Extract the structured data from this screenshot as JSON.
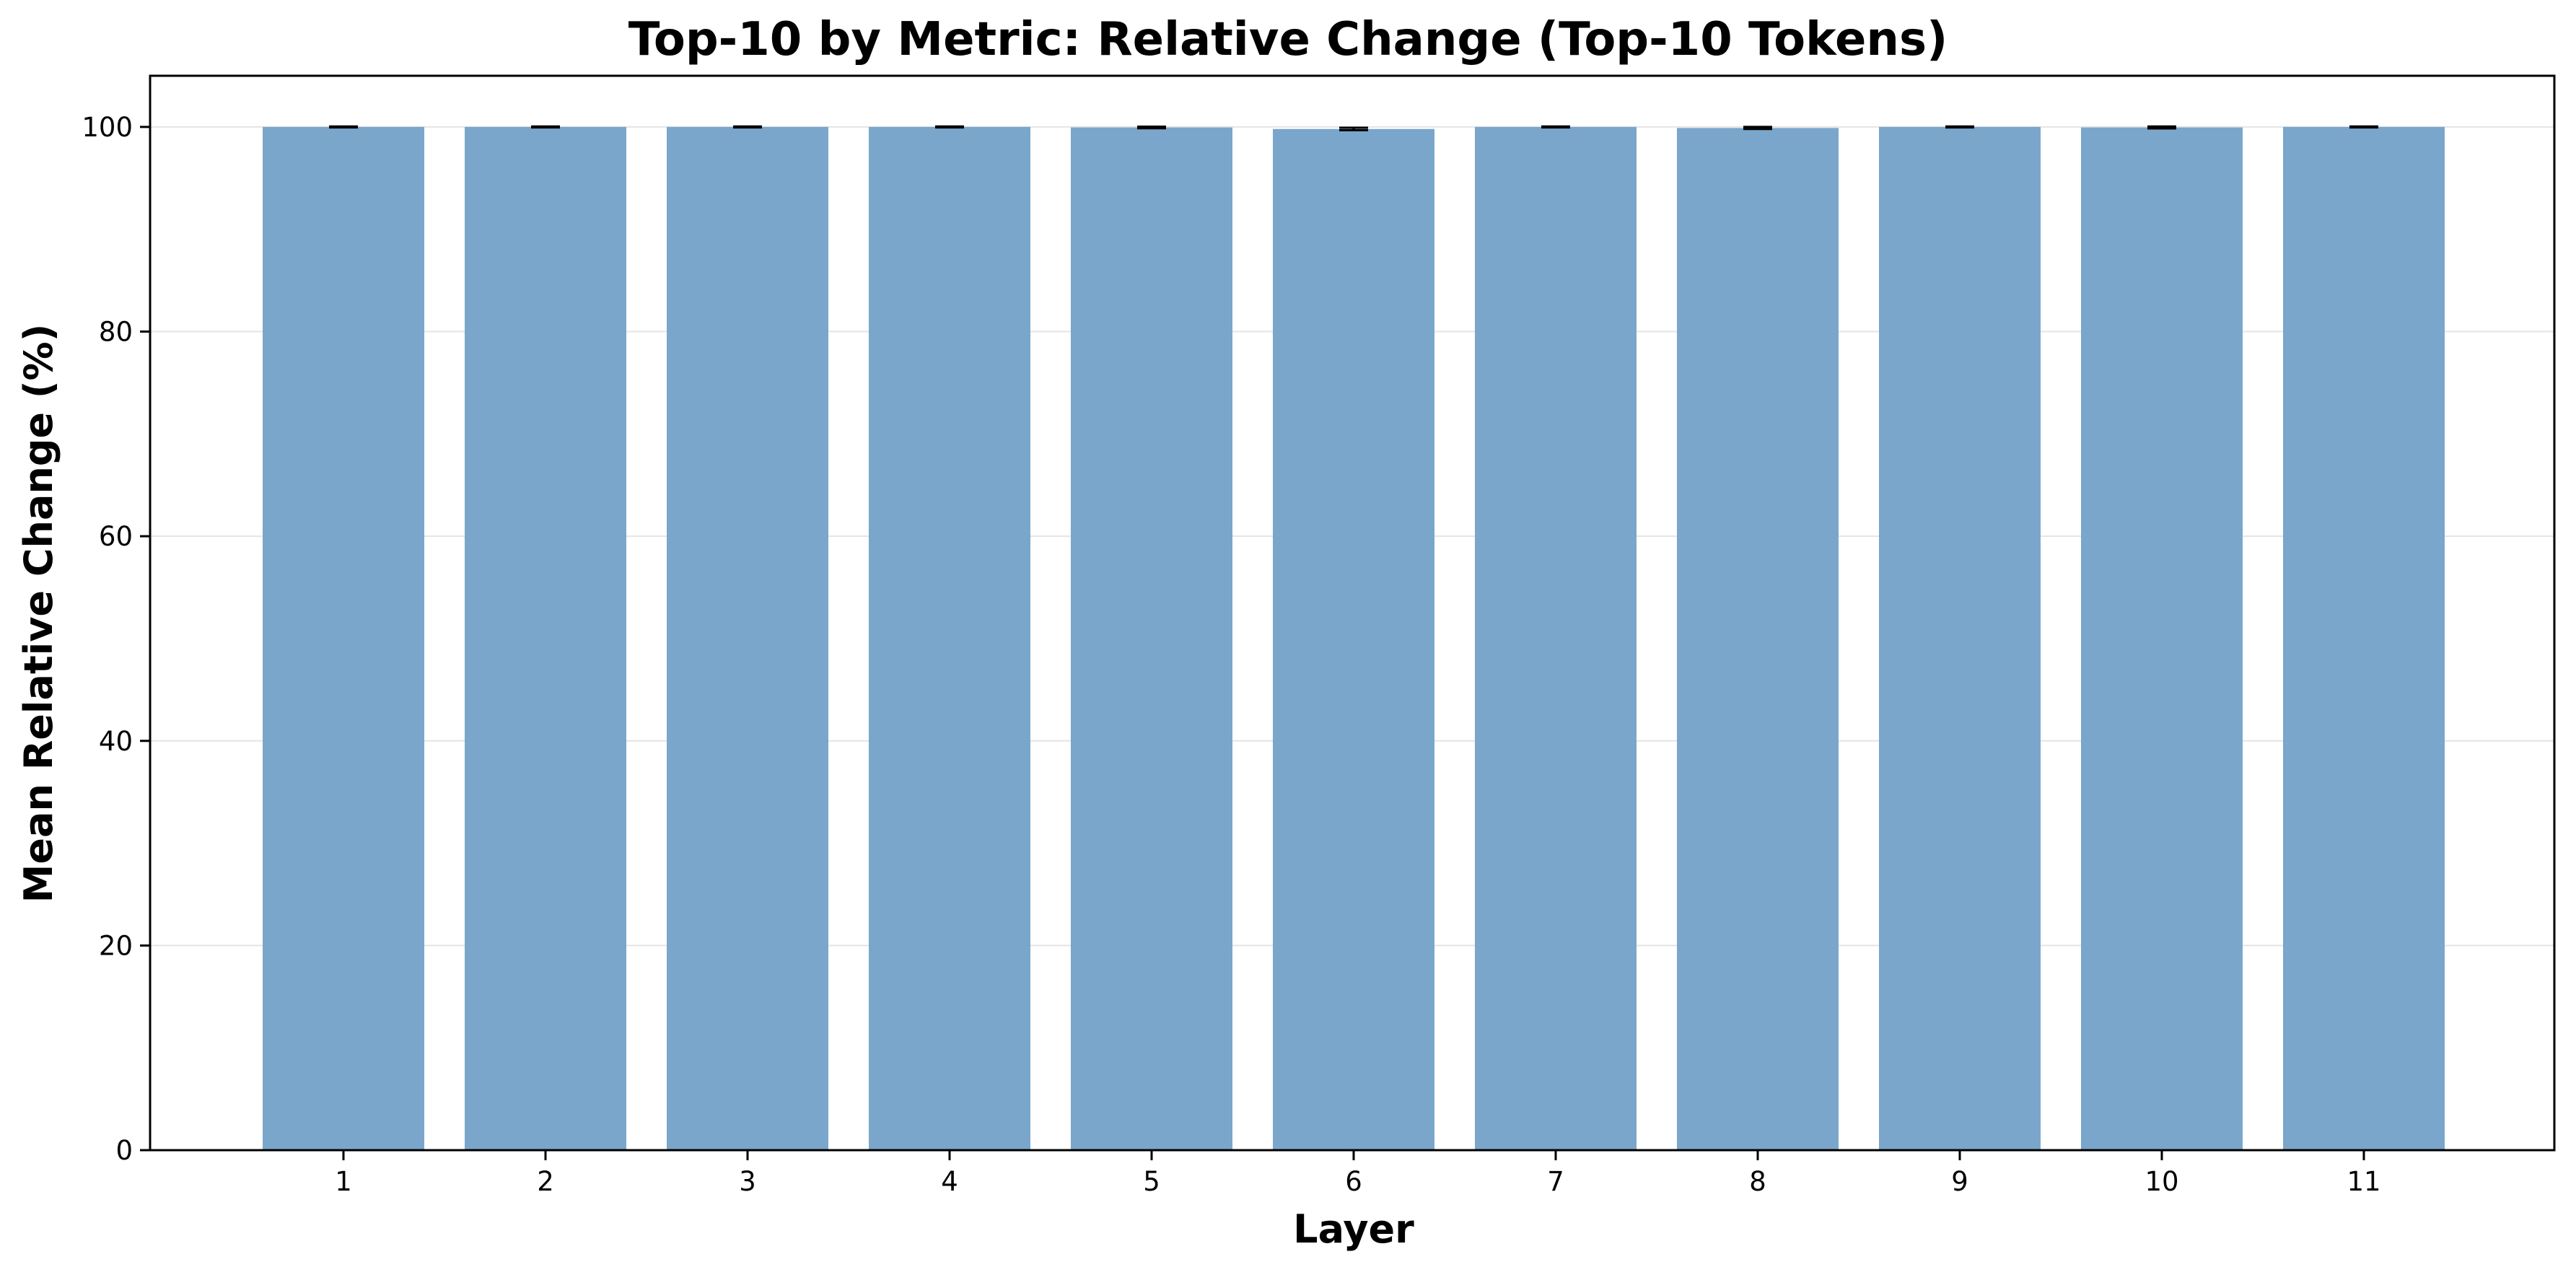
{
  "chart_data": {
    "type": "bar",
    "title": "Top-10 by Metric: Relative Change (Top-10 Tokens)",
    "xlabel": "Layer",
    "ylabel": "Mean Relative Change (%)",
    "categories": [
      "1",
      "2",
      "3",
      "4",
      "5",
      "6",
      "7",
      "8",
      "9",
      "10",
      "11"
    ],
    "values": [
      100.0,
      100.0,
      100.0,
      100.0,
      99.95,
      99.8,
      100.0,
      99.9,
      100.0,
      99.95,
      100.0
    ],
    "error": [
      0.05,
      0.05,
      0.05,
      0.05,
      0.08,
      0.12,
      0.05,
      0.1,
      0.05,
      0.1,
      0.05
    ],
    "ylim": [
      0,
      105
    ],
    "yticks": [
      0,
      20,
      40,
      60,
      80,
      100
    ],
    "grid": "y",
    "bar_color": "#7ba6cb",
    "error_color": "#000000"
  }
}
